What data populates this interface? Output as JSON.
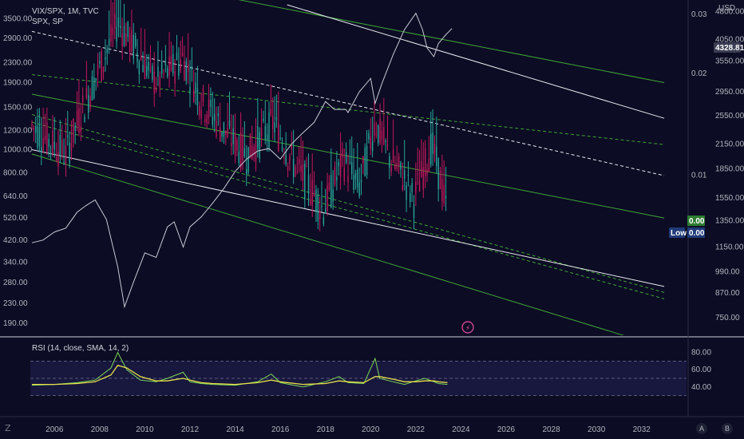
{
  "header": {
    "symbol_line": "VIX/SPX, 1M, TVC",
    "overlay_line": "SPX, SP",
    "rsi_label": "RSI (14, close, SMA, 14, 2)"
  },
  "colors": {
    "background": "#0c0c24",
    "candle_up": "#26a69a",
    "candle_down": "#c2185b",
    "channel_green": "#3fa535",
    "channel_white": "#e8e8f0",
    "spx_line": "#c9c9d6",
    "rsi_line": "#7ed957",
    "rsi_sma": "#e6e04a",
    "rsi_band": "#1c1a45"
  },
  "chart_data": [
    {
      "type": "candlestick",
      "series_name": "VIX/SPX",
      "scale": "log",
      "left_axis_ticks": [
        "3500.00",
        "2900.00",
        "2300.00",
        "1900.00",
        "1500.00",
        "1200.00",
        "1000.00",
        "800.00",
        "640.00",
        "520.00",
        "420.00",
        "340.00",
        "280.00",
        "230.00",
        "190.00"
      ],
      "right_axis_ticks": [
        "0.03",
        "0.02",
        "0.01"
      ],
      "x_ticks": [
        "2006",
        "2008",
        "2010",
        "2012",
        "2014",
        "2016",
        "2018",
        "2020",
        "2022",
        "2024",
        "2026",
        "2028",
        "2030",
        "2032"
      ],
      "x_range": [
        2005.0,
        2033.0
      ],
      "y_range": [
        180,
        4000
      ],
      "keypoints": [
        [
          2005.0,
          1250
        ],
        [
          2006.5,
          950
        ],
        [
          2007.2,
          1450
        ],
        [
          2008.2,
          2400
        ],
        [
          2008.8,
          3400
        ],
        [
          2009.6,
          2600
        ],
        [
          2010.5,
          1900
        ],
        [
          2011.7,
          2400
        ],
        [
          2012.5,
          1600
        ],
        [
          2013.5,
          1200
        ],
        [
          2014.5,
          950
        ],
        [
          2015.7,
          1300
        ],
        [
          2016.5,
          900
        ],
        [
          2017.3,
          700
        ],
        [
          2017.9,
          560
        ],
        [
          2018.8,
          900
        ],
        [
          2019.5,
          700
        ],
        [
          2020.2,
          1300
        ],
        [
          2020.9,
          900
        ],
        [
          2021.5,
          760
        ],
        [
          2021.9,
          620
        ],
        [
          2022.7,
          1050
        ],
        [
          2023.0,
          820
        ],
        [
          2023.4,
          540
        ]
      ],
      "last_value_tags": [
        {
          "label": "",
          "value": "0.00"
        },
        {
          "label": "Low",
          "value": "0.00"
        }
      ]
    },
    {
      "type": "line",
      "series_name": "SPX",
      "axis_ticks": [
        "4800.00",
        "4050.00",
        "3550.00",
        "2950.00",
        "2550.00",
        "2150.00",
        "1850.00",
        "1550.00",
        "1350.00",
        "1150.00",
        "990.00",
        "870.00",
        "750.00"
      ],
      "axis_unit": "USD",
      "last_value": "4328.81",
      "x": [
        2005.0,
        2005.5,
        2006.0,
        2006.5,
        2007.0,
        2007.4,
        2007.8,
        2008.3,
        2008.8,
        2009.1,
        2009.5,
        2010.0,
        2010.5,
        2011.0,
        2011.3,
        2011.7,
        2012.0,
        2012.5,
        2013.0,
        2013.5,
        2014.0,
        2014.5,
        2015.0,
        2015.5,
        2016.0,
        2016.5,
        2017.0,
        2017.5,
        2018.0,
        2018.4,
        2018.9,
        2019.0,
        2019.5,
        2020.0,
        2020.2,
        2020.5,
        2021.0,
        2021.5,
        2022.0,
        2022.3,
        2022.5,
        2022.8,
        2023.0,
        2023.3,
        2023.6
      ],
      "y": [
        1180,
        1200,
        1260,
        1290,
        1420,
        1480,
        1530,
        1360,
        1020,
        800,
        930,
        1110,
        1080,
        1300,
        1340,
        1150,
        1300,
        1380,
        1500,
        1640,
        1820,
        1960,
        2060,
        2090,
        1960,
        2150,
        2300,
        2450,
        2780,
        2650,
        2650,
        2600,
        2950,
        3200,
        2750,
        3100,
        3700,
        4300,
        4750,
        4300,
        3850,
        3650,
        3950,
        4150,
        4330
      ]
    },
    {
      "type": "line",
      "series_name": "RSI",
      "axis_ticks": [
        "80.00",
        "60.00",
        "40.00"
      ],
      "params": "14, close, SMA, 14, 2",
      "x": [
        2005.0,
        2006.0,
        2007.0,
        2007.8,
        2008.5,
        2008.8,
        2009.2,
        2009.8,
        2010.5,
        2011.0,
        2011.7,
        2012.0,
        2012.5,
        2013.0,
        2014.0,
        2015.0,
        2015.6,
        2016.0,
        2017.0,
        2018.0,
        2018.6,
        2019.0,
        2019.7,
        2020.2,
        2020.4,
        2021.0,
        2021.5,
        2022.0,
        2022.4,
        2022.8,
        2023.0,
        2023.4
      ],
      "y": [
        42,
        43,
        45,
        48,
        62,
        80,
        60,
        48,
        46,
        50,
        57,
        46,
        44,
        43,
        42,
        46,
        55,
        45,
        40,
        46,
        52,
        45,
        44,
        73,
        50,
        46,
        43,
        47,
        50,
        46,
        44,
        43
      ],
      "sma_y": [
        43,
        43,
        44,
        46,
        54,
        65,
        62,
        52,
        47,
        47,
        50,
        48,
        45,
        44,
        43,
        45,
        48,
        46,
        43,
        44,
        47,
        46,
        45,
        52,
        52,
        49,
        46,
        46,
        47,
        47,
        46,
        45
      ],
      "upper_band": 70,
      "middle_band": 50,
      "lower_band": 30
    }
  ],
  "corner_buttons": [
    "A",
    "B"
  ]
}
